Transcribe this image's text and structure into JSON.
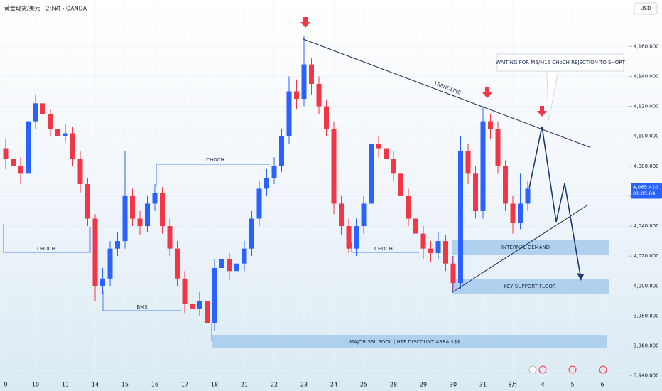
{
  "chart_data": {
    "type": "candlestick",
    "title": "黄金现货/美元 · 2小时 · OANDA",
    "currency": "USD",
    "categories": [
      "9",
      null,
      null,
      null,
      "10",
      null,
      null,
      null,
      "11",
      null,
      null,
      null,
      "14",
      null,
      null,
      null,
      "15",
      null,
      null,
      null,
      "16",
      null,
      null,
      null,
      "17",
      null,
      null,
      null,
      "18",
      null,
      null,
      null,
      "21",
      null,
      null,
      null,
      "22",
      null,
      null,
      null,
      "23",
      null,
      null,
      null,
      "24",
      null,
      null,
      null,
      "25",
      null,
      null,
      null,
      "28",
      null,
      null,
      null,
      "29",
      null,
      null,
      null,
      "30",
      null,
      null,
      null,
      "31",
      null,
      null,
      null,
      "8月",
      null,
      null,
      null,
      "4",
      null,
      null,
      null,
      "5",
      null,
      null,
      null,
      "6"
    ],
    "open": [
      4092,
      4085,
      4080,
      4075,
      4110,
      4122,
      4115,
      4105,
      4100,
      4102,
      4085,
      4068,
      4045,
      4000,
      4005,
      4025,
      4030,
      4060,
      4045,
      4040,
      4055,
      4062,
      4040,
      4025,
      4005,
      3988,
      3985,
      3990,
      3975,
      4012,
      4018,
      4010,
      4015,
      4025,
      4045,
      4065,
      4072,
      4080,
      4100,
      4130,
      4125,
      4148,
      4135,
      4120,
      4105,
      4055,
      4040,
      4025,
      4040,
      4055,
      4095,
      4092,
      4085,
      4075,
      4060,
      4045,
      4035,
      4025,
      4022,
      4030,
      4015,
      4002,
      4090,
      4075,
      4050,
      4110,
      4105,
      4080,
      4055,
      4042,
      4055,
      null,
      null,
      null,
      null,
      null,
      null,
      null,
      null,
      null,
      null
    ],
    "high": [
      4098,
      4090,
      4086,
      4115,
      4128,
      4126,
      4118,
      4110,
      4108,
      4106,
      4090,
      4072,
      4048,
      4012,
      4030,
      4036,
      4090,
      4065,
      4050,
      4060,
      4068,
      4066,
      4045,
      4030,
      4010,
      3995,
      3996,
      3994,
      4018,
      4024,
      4022,
      4020,
      4030,
      4050,
      4070,
      4078,
      4086,
      4105,
      4140,
      4138,
      4167,
      4152,
      4140,
      4124,
      4110,
      4060,
      4045,
      4045,
      4060,
      4102,
      4100,
      4096,
      4090,
      4080,
      4065,
      4050,
      4040,
      4030,
      4036,
      4034,
      4020,
      4100,
      4095,
      4080,
      4120,
      4115,
      4110,
      4084,
      4060,
      4075,
      4070,
      null,
      null,
      null,
      null,
      null,
      null,
      null,
      null,
      null,
      null
    ],
    "low": [
      4078,
      4074,
      4068,
      4070,
      4105,
      4110,
      4100,
      4094,
      4096,
      4080,
      4062,
      4040,
      3990,
      3995,
      4000,
      4020,
      4025,
      4040,
      4034,
      4036,
      4050,
      4035,
      4020,
      4000,
      3982,
      3980,
      3980,
      3962,
      3970,
      4006,
      4004,
      4006,
      4010,
      4020,
      4040,
      4060,
      4068,
      4076,
      4095,
      4118,
      4120,
      4128,
      4115,
      4100,
      4048,
      4034,
      4022,
      4020,
      4035,
      4050,
      4086,
      4080,
      4070,
      4055,
      4040,
      4030,
      4018,
      4016,
      4018,
      4010,
      3997,
      3998,
      4068,
      4045,
      4045,
      4098,
      4075,
      4050,
      4035,
      4038,
      4050,
      null,
      null,
      null,
      null,
      null,
      null,
      null,
      null,
      null,
      null
    ],
    "close": [
      4085,
      4080,
      4075,
      4110,
      4122,
      4115,
      4105,
      4100,
      4102,
      4085,
      4068,
      4045,
      4000,
      4005,
      4025,
      4030,
      4060,
      4045,
      4040,
      4055,
      4062,
      4040,
      4025,
      4005,
      3988,
      3985,
      3990,
      3975,
      4012,
      4018,
      4010,
      4015,
      4025,
      4045,
      4065,
      4072,
      4080,
      4100,
      4130,
      4125,
      4148,
      4135,
      4120,
      4105,
      4055,
      4040,
      4025,
      4040,
      4055,
      4095,
      4092,
      4085,
      4075,
      4060,
      4045,
      4035,
      4025,
      4022,
      4030,
      4015,
      4002,
      4090,
      4075,
      4050,
      4110,
      4105,
      4080,
      4055,
      4042,
      4055,
      4065,
      null,
      null,
      null,
      null,
      null,
      null,
      null,
      null,
      null,
      null
    ],
    "up_color": "#2962ff",
    "down_color": "#f23645",
    "ylim": [
      3937,
      4191
    ],
    "yticks": [
      {
        "value": 3940,
        "label": "3,940.000"
      },
      {
        "value": 3960,
        "label": "3,960.000"
      },
      {
        "value": 3980,
        "label": "3,980.000"
      },
      {
        "value": 4000,
        "label": "4,000.000"
      },
      {
        "value": 4020,
        "label": "4,020.000"
      },
      {
        "value": 4040,
        "label": "4,040.000"
      },
      {
        "value": 4060,
        "label": "4,060.000"
      },
      {
        "value": 4080,
        "label": "4,080.000"
      },
      {
        "value": 4100,
        "label": "4,100.000"
      },
      {
        "value": 4120,
        "label": "4,120.000"
      },
      {
        "value": 4140,
        "label": "4,140.000"
      },
      {
        "value": 4160,
        "label": "4,160.000"
      }
    ],
    "last_price": {
      "value": 4065.41,
      "label": "4,065.410"
    },
    "countdown": "01:05:04",
    "annotations": [
      "CHOCH",
      "BMS",
      "CHOCH",
      "CHOCH",
      "TRENDLINE",
      "INTERNAL DEMAND",
      "KEY SUPPORT FLOOR",
      "MAJOR SSL POOL | HTF DISCOUNT AREA $$$",
      "WAITING FOR M5/M15 CHoCH REJECTION TO SHORT"
    ]
  }
}
